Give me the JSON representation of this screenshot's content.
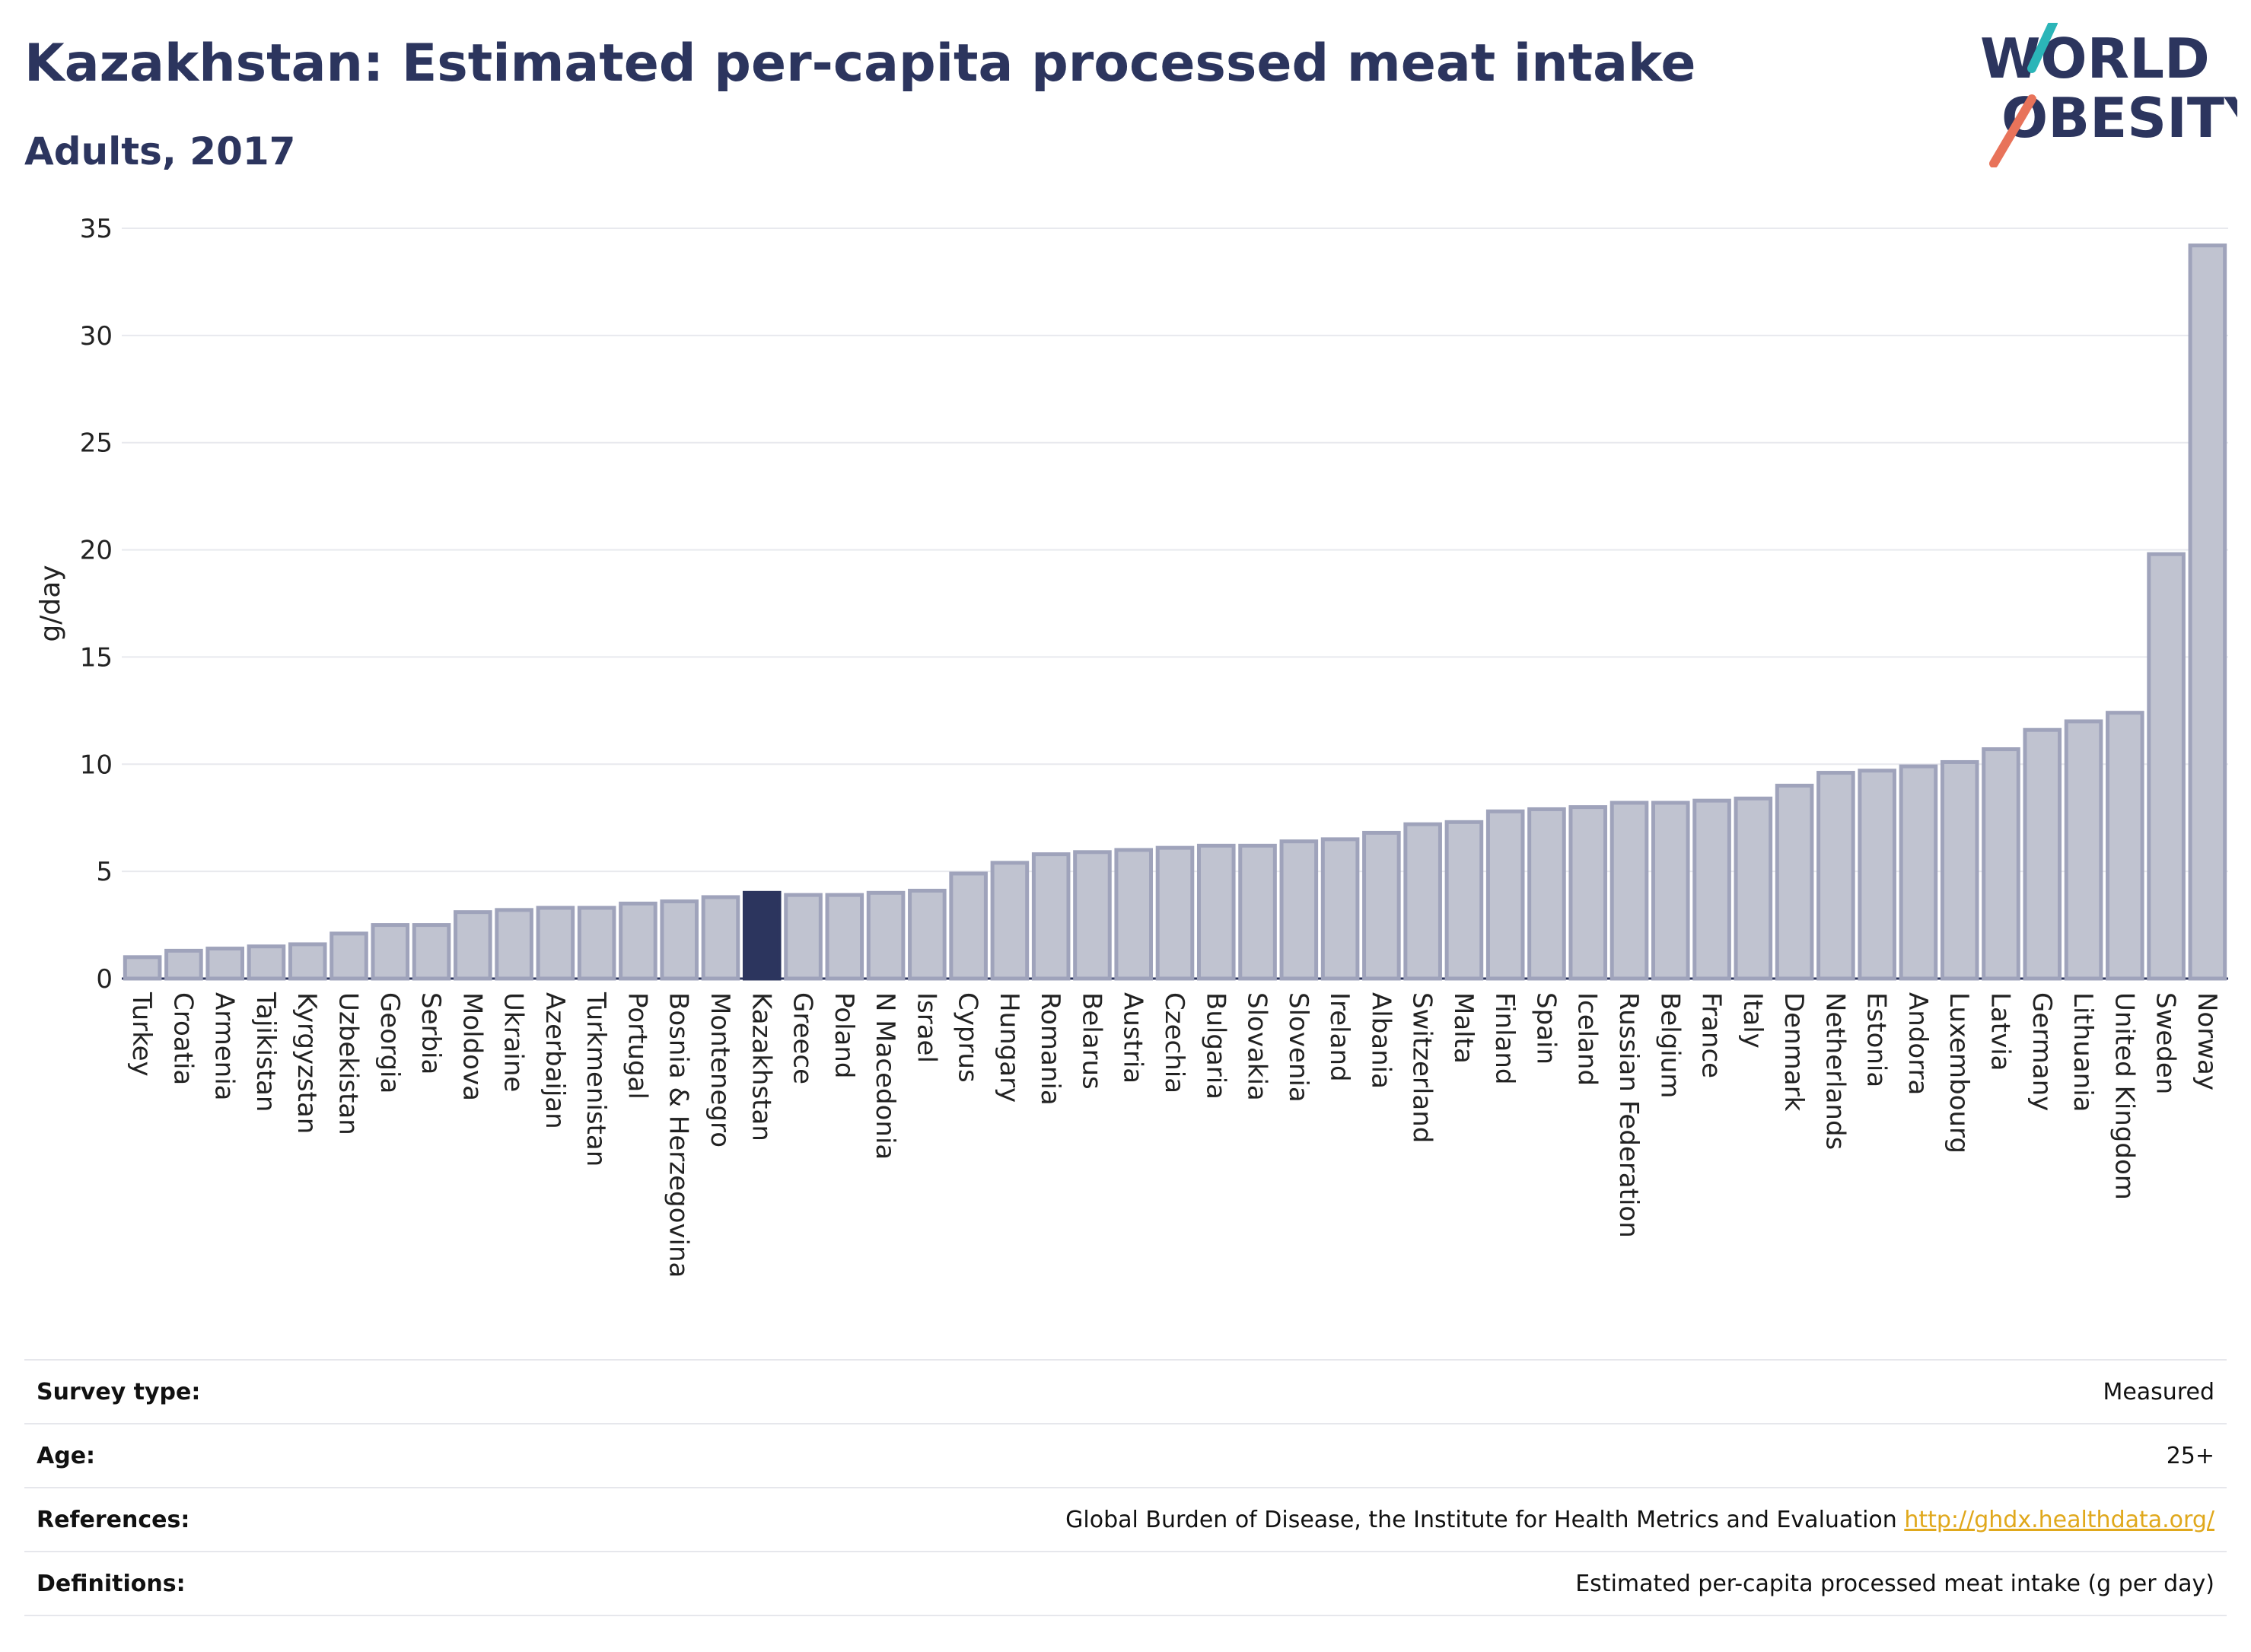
{
  "header": {
    "title": "Kazakhstan: Estimated per-capita processed meat intake",
    "subtitle": "Adults, 2017"
  },
  "logo": {
    "line1": "WORLD",
    "line2": "OBESITY"
  },
  "colors": {
    "bar": "#c0c3d0",
    "bar_border": "#9fa3bb",
    "highlight": "#2c355e",
    "accent_teal": "#2bb5b8",
    "accent_coral": "#e8735a"
  },
  "chart_data": {
    "type": "bar",
    "ylabel": "g/day",
    "ylim": [
      0,
      35
    ],
    "yticks": [
      0,
      5,
      10,
      15,
      20,
      25,
      30,
      35
    ],
    "grid": true,
    "highlight": "Kazakhstan",
    "categories": [
      "Turkey",
      "Croatia",
      "Armenia",
      "Tajikistan",
      "Kyrgyzstan",
      "Uzbekistan",
      "Georgia",
      "Serbia",
      "Moldova",
      "Ukraine",
      "Azerbaijan",
      "Turkmenistan",
      "Portugal",
      "Bosnia & Herzegovina",
      "Montenegro",
      "Kazakhstan",
      "Greece",
      "Poland",
      "N Macedonia",
      "Israel",
      "Cyprus",
      "Hungary",
      "Romania",
      "Belarus",
      "Austria",
      "Czechia",
      "Bulgaria",
      "Slovakia",
      "Slovenia",
      "Ireland",
      "Albania",
      "Switzerland",
      "Malta",
      "Finland",
      "Spain",
      "Iceland",
      "Russian Federation",
      "Belgium",
      "France",
      "Italy",
      "Denmark",
      "Netherlands",
      "Estonia",
      "Andorra",
      "Luxembourg",
      "Latvia",
      "Germany",
      "Lithuania",
      "United Kingdom",
      "Sweden",
      "Norway"
    ],
    "values": [
      1.0,
      1.3,
      1.4,
      1.5,
      1.6,
      2.1,
      2.5,
      2.5,
      3.1,
      3.2,
      3.3,
      3.3,
      3.5,
      3.6,
      3.8,
      4.0,
      3.9,
      3.9,
      4.0,
      4.1,
      4.9,
      5.4,
      5.8,
      5.9,
      6.0,
      6.1,
      6.2,
      6.2,
      6.4,
      6.5,
      6.8,
      7.2,
      7.3,
      7.8,
      7.9,
      8.0,
      8.2,
      8.2,
      8.3,
      8.4,
      9.0,
      9.6,
      9.7,
      9.9,
      10.1,
      10.7,
      11.6,
      12.0,
      12.4,
      19.8,
      34.2
    ]
  },
  "info": {
    "rows": [
      {
        "label": "Survey type:",
        "value": "Measured"
      },
      {
        "label": "Age:",
        "value": "25+"
      },
      {
        "label": "References:",
        "value": "Global Burden of Disease, the Institute for Health Metrics and Evaluation ",
        "link": "http://ghdx.healthdata.org/"
      },
      {
        "label": "Definitions:",
        "value": "Estimated per-capita processed meat intake (g per day)"
      }
    ]
  }
}
